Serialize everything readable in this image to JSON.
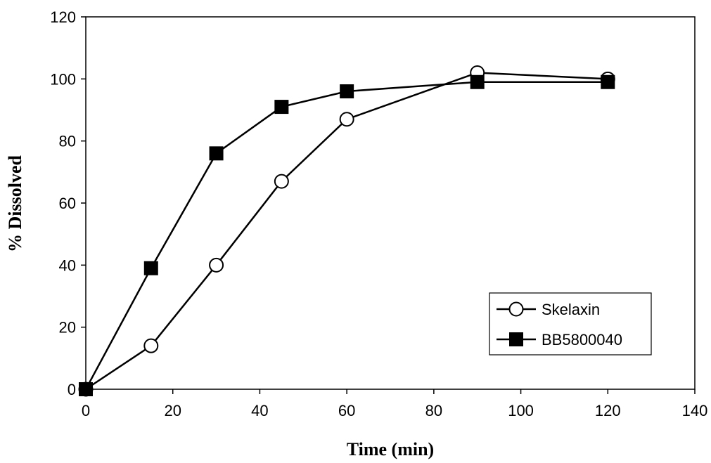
{
  "chart_data": {
    "type": "line",
    "title": "",
    "xlabel": "Time (min)",
    "ylabel": "% Dissolved",
    "xlim": [
      0,
      140
    ],
    "ylim": [
      0,
      120
    ],
    "xticks": [
      0,
      20,
      40,
      60,
      80,
      100,
      120,
      140
    ],
    "yticks": [
      0,
      20,
      40,
      60,
      80,
      100,
      120
    ],
    "grid": false,
    "legend_position": "bottom-right",
    "series": [
      {
        "name": "Skelaxin",
        "marker": "open-circle",
        "color": "#000000",
        "x": [
          0,
          15,
          30,
          45,
          60,
          90,
          120
        ],
        "y": [
          0,
          14,
          40,
          67,
          87,
          102,
          100
        ]
      },
      {
        "name": "BB5800040",
        "marker": "filled-square",
        "color": "#000000",
        "x": [
          0,
          15,
          30,
          45,
          60,
          90,
          120
        ],
        "y": [
          0,
          39,
          76,
          91,
          96,
          99,
          99
        ]
      }
    ]
  }
}
